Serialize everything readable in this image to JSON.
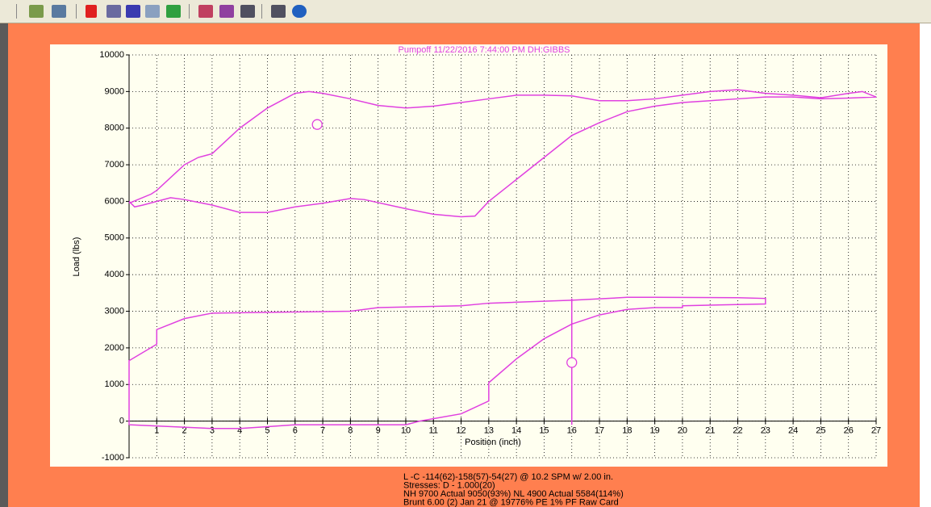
{
  "chart_data": {
    "type": "line",
    "title": "Pumpoff    11/22/2016 7:44:00 PM  DH:GIBBS",
    "x_label": "Position (inch)",
    "y_label": "Load (lbs)",
    "color": "#e040e0",
    "xlim": [
      0,
      27
    ],
    "ylim": [
      -1000,
      10000
    ],
    "xticks": [
      1,
      2,
      3,
      4,
      5,
      6,
      7,
      8,
      9,
      10,
      11,
      12,
      13,
      14,
      15,
      16,
      17,
      18,
      19,
      20,
      21,
      22,
      23,
      24,
      25,
      26,
      27
    ],
    "yticks": [
      -1000,
      0,
      1000,
      2000,
      3000,
      4000,
      5000,
      6000,
      7000,
      8000,
      9000,
      10000
    ],
    "grid": true,
    "series": [
      {
        "x": [
          0,
          0.2,
          0.5,
          1.5,
          2,
          3,
          4,
          5,
          6,
          7,
          8,
          8.5,
          10,
          11,
          12,
          12.5,
          13,
          14,
          15,
          16,
          17,
          18,
          19,
          20,
          21,
          22,
          23,
          24,
          25,
          26,
          27,
          26.5,
          26,
          25,
          24,
          23,
          22,
          21,
          20,
          19,
          18,
          17,
          16,
          15,
          14,
          13,
          12,
          11,
          10,
          9,
          8,
          7,
          6.5,
          6,
          5.5,
          5,
          4,
          3,
          2.5,
          2,
          1,
          0.8,
          0
        ],
        "values": [
          6000,
          5850,
          5900,
          6100,
          6050,
          5900,
          5700,
          5700,
          5850,
          5950,
          6080,
          6050,
          5800,
          5650,
          5580,
          5600,
          6000,
          6600,
          7200,
          7800,
          8150,
          8450,
          8600,
          8700,
          8750,
          8800,
          8850,
          8850,
          8800,
          8820,
          8850,
          9000,
          8950,
          8830,
          8900,
          8950,
          9050,
          9000,
          8900,
          8800,
          8750,
          8750,
          8880,
          8900,
          8900,
          8800,
          8700,
          8600,
          8550,
          8620,
          8800,
          8950,
          9000,
          8950,
          8750,
          8550,
          8000,
          7300,
          7200,
          7000,
          6300,
          6200,
          5950
        ]
      },
      {
        "x": [
          0,
          3,
          4,
          5,
          6,
          10,
          10.5,
          12,
          13,
          13,
          14,
          15,
          16,
          17,
          18,
          19,
          20,
          20,
          23,
          23,
          22,
          19,
          18,
          16,
          13,
          12,
          9,
          8,
          5,
          3,
          2,
          1,
          1,
          0,
          0
        ],
        "values": [
          -100,
          -200,
          -200,
          -150,
          -100,
          -100,
          0,
          200,
          550,
          1050,
          1700,
          2250,
          2650,
          2900,
          3050,
          3100,
          3100,
          3150,
          3200,
          3350,
          3370,
          3380,
          3380,
          3300,
          3220,
          3150,
          3100,
          3000,
          2970,
          2950,
          2800,
          2500,
          2100,
          1650,
          -100
        ]
      },
      {
        "x": [
          16,
          16
        ],
        "values": [
          -100,
          3350
        ]
      }
    ],
    "markers": {
      "x": [
        6.8,
        16
      ],
      "values": [
        8100,
        1600
      ]
    },
    "footer": [
      "L -C -114(62)-158(57)-54(27) @ 10.2 SPM w/ 2.00 in.",
      "Stresses: D - 1.000(20)",
      "NH 9700 Actual 9050(93%) NL 4900 Actual 5584(114%)",
      "Brunt 6.00 (2) Jan 21 @ 19776% PE 1% PF Raw Card"
    ]
  }
}
